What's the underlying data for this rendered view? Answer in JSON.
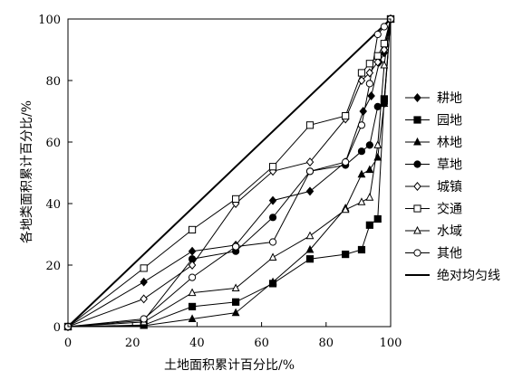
{
  "chart_data": {
    "type": "line",
    "title": "",
    "xlabel": "土地面积累计百分比/%",
    "ylabel": "各地类面积累计百分比/%",
    "xlim": [
      0,
      100
    ],
    "ylim": [
      0,
      100
    ],
    "xticks": [
      0,
      20,
      40,
      60,
      80,
      100
    ],
    "yticks": [
      0,
      20,
      40,
      60,
      80,
      100
    ],
    "grid": false,
    "legend_position": "right",
    "series": [
      {
        "name": "耕地",
        "marker": "diamond-filled",
        "points": [
          [
            0,
            0
          ],
          [
            23.5,
            14.5
          ],
          [
            38.5,
            24.5
          ],
          [
            52,
            26.5
          ],
          [
            63.5,
            41
          ],
          [
            75,
            44
          ],
          [
            86,
            53.5
          ],
          [
            91.5,
            70
          ],
          [
            94,
            75
          ],
          [
            96.5,
            86
          ],
          [
            98,
            89
          ],
          [
            100,
            100
          ]
        ]
      },
      {
        "name": "园地",
        "marker": "square-filled",
        "points": [
          [
            0,
            0
          ],
          [
            23.5,
            0.5
          ],
          [
            38.5,
            6.5
          ],
          [
            52,
            8
          ],
          [
            63.5,
            14
          ],
          [
            75,
            22
          ],
          [
            86,
            23.5
          ],
          [
            91,
            25
          ],
          [
            93.5,
            33
          ],
          [
            96,
            35
          ],
          [
            98,
            74
          ],
          [
            100,
            100
          ]
        ]
      },
      {
        "name": "林地",
        "marker": "triangle-filled",
        "points": [
          [
            0,
            0
          ],
          [
            23.5,
            0.3
          ],
          [
            38.5,
            2.5
          ],
          [
            52,
            4.5
          ],
          [
            63.5,
            14.5
          ],
          [
            75,
            25
          ],
          [
            86,
            38.5
          ],
          [
            91,
            49.5
          ],
          [
            93.5,
            51
          ],
          [
            96,
            55
          ],
          [
            98,
            72.5
          ],
          [
            100,
            100
          ]
        ]
      },
      {
        "name": "草地",
        "marker": "circle-filled",
        "points": [
          [
            0,
            0
          ],
          [
            23.5,
            2
          ],
          [
            38.5,
            22
          ],
          [
            52,
            24.5
          ],
          [
            63.5,
            35.5
          ],
          [
            75,
            50.5
          ],
          [
            86,
            52.5
          ],
          [
            91,
            57
          ],
          [
            93.5,
            59
          ],
          [
            96,
            71.5
          ],
          [
            98,
            72.5
          ],
          [
            100,
            100
          ]
        ]
      },
      {
        "name": "城镇",
        "marker": "diamond-open",
        "points": [
          [
            0,
            0
          ],
          [
            23.5,
            9
          ],
          [
            38.5,
            20
          ],
          [
            52,
            40
          ],
          [
            63.5,
            50.5
          ],
          [
            75,
            53.5
          ],
          [
            86,
            67.5
          ],
          [
            91,
            80
          ],
          [
            93.5,
            82.5
          ],
          [
            96,
            86
          ],
          [
            98,
            90
          ],
          [
            100,
            100
          ]
        ]
      },
      {
        "name": "交通",
        "marker": "square-open",
        "points": [
          [
            0,
            0
          ],
          [
            23.5,
            19
          ],
          [
            38.5,
            31.5
          ],
          [
            52,
            41.5
          ],
          [
            63.5,
            52
          ],
          [
            75,
            65.5
          ],
          [
            86,
            68.5
          ],
          [
            91,
            82.5
          ],
          [
            93.5,
            85.5
          ],
          [
            96,
            88
          ],
          [
            98,
            92
          ],
          [
            100,
            100
          ]
        ]
      },
      {
        "name": "水域",
        "marker": "triangle-open",
        "points": [
          [
            0,
            0
          ],
          [
            23.5,
            1.5
          ],
          [
            38.5,
            11
          ],
          [
            52,
            12.5
          ],
          [
            63.5,
            22.5
          ],
          [
            75,
            29.5
          ],
          [
            86,
            38
          ],
          [
            91,
            40.5
          ],
          [
            93.5,
            42
          ],
          [
            96,
            59
          ],
          [
            98,
            85
          ],
          [
            100,
            100
          ]
        ]
      },
      {
        "name": "其他",
        "marker": "circle-open",
        "points": [
          [
            0,
            0
          ],
          [
            23.5,
            2.5
          ],
          [
            38.5,
            16
          ],
          [
            52,
            26
          ],
          [
            63.5,
            27.5
          ],
          [
            75,
            50.5
          ],
          [
            86,
            53.5
          ],
          [
            91,
            65.5
          ],
          [
            93.5,
            79
          ],
          [
            96,
            95
          ],
          [
            98,
            97.5
          ],
          [
            100,
            100
          ]
        ]
      },
      {
        "name": "绝对均匀线",
        "marker": "none",
        "line_width": "thick",
        "points": [
          [
            0,
            0
          ],
          [
            100,
            100
          ]
        ]
      }
    ]
  }
}
